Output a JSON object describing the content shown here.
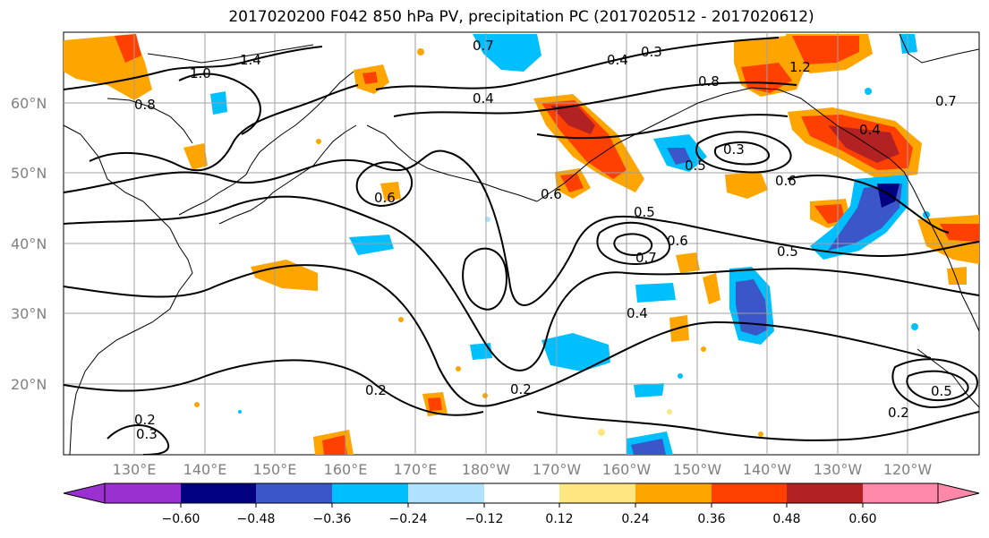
{
  "title": "2017020200 F042 850 hPa PV, precipitation PC (2017020512 - 2017020612)",
  "map": {
    "lat_ticks": [
      "60°N",
      "50°N",
      "40°N",
      "30°N",
      "20°N"
    ],
    "lon_ticks": [
      "130°E",
      "140°E",
      "150°E",
      "160°E",
      "170°E",
      "180°W",
      "170°W",
      "160°W",
      "150°W",
      "140°W",
      "130°W",
      "120°W"
    ],
    "contour_labels": [
      "1.4",
      "1.0",
      "0.7",
      "0.4",
      "0.3",
      "0.8",
      "1.2",
      "0.4",
      "0.6",
      "0.5",
      "0.3",
      "0.5",
      "0.6",
      "0.5",
      "0.7",
      "0.6",
      "0.4",
      "0.2",
      "0.2",
      "0.2",
      "0.3",
      "0.5",
      "0.2",
      "0.8",
      "0.6",
      "0.7",
      "0.4"
    ],
    "colors": {
      "land_outline": "#000000",
      "grid": "#a0a0a0",
      "contour": "#000000"
    }
  },
  "colorbar": {
    "ticks": [
      "−0.60",
      "−0.48",
      "−0.36",
      "−0.24",
      "−0.12",
      "0.12",
      "0.24",
      "0.36",
      "0.48",
      "0.60"
    ],
    "colors": [
      "#9b30d0",
      "#000080",
      "#3a56c8",
      "#00bfff",
      "#b0e2ff",
      "#ffffff",
      "#ffe680",
      "#ffa500",
      "#ff4000",
      "#b22222",
      "#ff88aa"
    ]
  }
}
